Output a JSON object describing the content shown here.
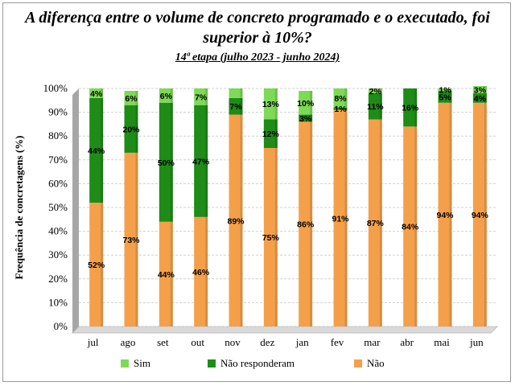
{
  "title_line1": "A diferença entre o volume de concreto programado e o executado, foi",
  "title_line2": "superior à 10%?",
  "subtitle": "14ª etapa (julho 2023 - junho 2024)",
  "colors": {
    "sim": "#7ed957",
    "nao_responderam": "#1e8c17",
    "nao": "#f4a04a"
  },
  "chart_data": {
    "type": "bar",
    "stacked": true,
    "categories": [
      "jul",
      "ago",
      "set",
      "out",
      "nov",
      "dez",
      "jan",
      "fev",
      "mar",
      "abr",
      "mai",
      "jun"
    ],
    "series": [
      {
        "name": "Não",
        "values": [
          52,
          73,
          44,
          46,
          89,
          75,
          86,
          91,
          87,
          84,
          94,
          94
        ],
        "labels": [
          "52%",
          "73%",
          "44%",
          "46%",
          "89%",
          "75%",
          "86%",
          "91%",
          "87%",
          "84%",
          "94%",
          "94%"
        ]
      },
      {
        "name": "Não responderam",
        "values": [
          44,
          20,
          50,
          47,
          7,
          12,
          3,
          1,
          11,
          16,
          5,
          4
        ],
        "labels": [
          "44%",
          "20%",
          "50%",
          "47%",
          "7%",
          "12%",
          "3%",
          "1%",
          "11%",
          "16%",
          "5%",
          "4%"
        ]
      },
      {
        "name": "Sim",
        "values": [
          4,
          6,
          6,
          7,
          4,
          13,
          10,
          8,
          2,
          0,
          1,
          3
        ],
        "labels": [
          "4%",
          "6%",
          "6%",
          "7%",
          "",
          "13%",
          "10%",
          "8%",
          "2%",
          "",
          "1%",
          "3%"
        ]
      }
    ],
    "ylabel": "Frequência de concretagens (%)",
    "ylim": [
      0,
      100
    ],
    "yticks": [
      "0%",
      "10%",
      "20%",
      "30%",
      "40%",
      "50%",
      "60%",
      "70%",
      "80%",
      "90%",
      "100%"
    ],
    "legend_position": "bottom",
    "legend": [
      "Sim",
      "Não responderam",
      "Não"
    ]
  }
}
